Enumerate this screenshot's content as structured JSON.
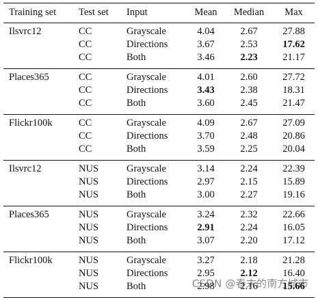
{
  "headers": {
    "training_set": "Training set",
    "test_set": "Test set",
    "input": "Input",
    "mean": "Mean",
    "median": "Median",
    "max": "Max"
  },
  "groups": [
    {
      "training_set": "Ilsvrc12",
      "rows": [
        {
          "test_set": "CC",
          "input": "Grayscale",
          "mean": "4.04",
          "median": "2.67",
          "max": "27.88"
        },
        {
          "test_set": "CC",
          "input": "Directions",
          "mean": "3.67",
          "median": "2.53",
          "max": "17.62"
        },
        {
          "test_set": "CC",
          "input": "Both",
          "mean": "3.46",
          "median": "2.23",
          "max": "21.17"
        }
      ]
    },
    {
      "training_set": "Places365",
      "rows": [
        {
          "test_set": "CC",
          "input": "Grayscale",
          "mean": "4.01",
          "median": "2.60",
          "max": "27.72"
        },
        {
          "test_set": "CC",
          "input": "Directions",
          "mean": "3.43",
          "median": "2.38",
          "max": "18.31"
        },
        {
          "test_set": "CC",
          "input": "Both",
          "mean": "3.60",
          "median": "2.45",
          "max": "21.47"
        }
      ]
    },
    {
      "training_set": "Flickr100k",
      "rows": [
        {
          "test_set": "CC",
          "input": "Grayscale",
          "mean": "4.09",
          "median": "2.67",
          "max": "27.09"
        },
        {
          "test_set": "CC",
          "input": "Directions",
          "mean": "3.70",
          "median": "2.48",
          "max": "20.86"
        },
        {
          "test_set": "CC",
          "input": "Both",
          "mean": "3.59",
          "median": "2.25",
          "max": "20.04"
        }
      ]
    },
    {
      "training_set": "Ilsvrc12",
      "rows": [
        {
          "test_set": "NUS",
          "input": "Grayscale",
          "mean": "3.14",
          "median": "2.24",
          "max": "22.39"
        },
        {
          "test_set": "NUS",
          "input": "Directions",
          "mean": "2.97",
          "median": "2.15",
          "max": "15.89"
        },
        {
          "test_set": "NUS",
          "input": "Both",
          "mean": "3.00",
          "median": "2.27",
          "max": "19.16"
        }
      ]
    },
    {
      "training_set": "Places365",
      "rows": [
        {
          "test_set": "NUS",
          "input": "Grayscale",
          "mean": "3.24",
          "median": "2.32",
          "max": "22.66"
        },
        {
          "test_set": "NUS",
          "input": "Directions",
          "mean": "2.91",
          "median": "2.24",
          "max": "16.05"
        },
        {
          "test_set": "NUS",
          "input": "Both",
          "mean": "3.07",
          "median": "2.20",
          "max": "17.12"
        }
      ]
    },
    {
      "training_set": "Flickr100k",
      "rows": [
        {
          "test_set": "NUS",
          "input": "Grayscale",
          "mean": "3.27",
          "median": "2.18",
          "max": "21.28"
        },
        {
          "test_set": "NUS",
          "input": "Directions",
          "mean": "2.95",
          "median": "2.12",
          "max": "16.40"
        },
        {
          "test_set": "NUS",
          "input": "Both",
          "mean": "2.98",
          "median": "2.16",
          "max": "15.66"
        }
      ]
    }
  ],
  "watermark": "CSDN @春末的南方城市"
}
